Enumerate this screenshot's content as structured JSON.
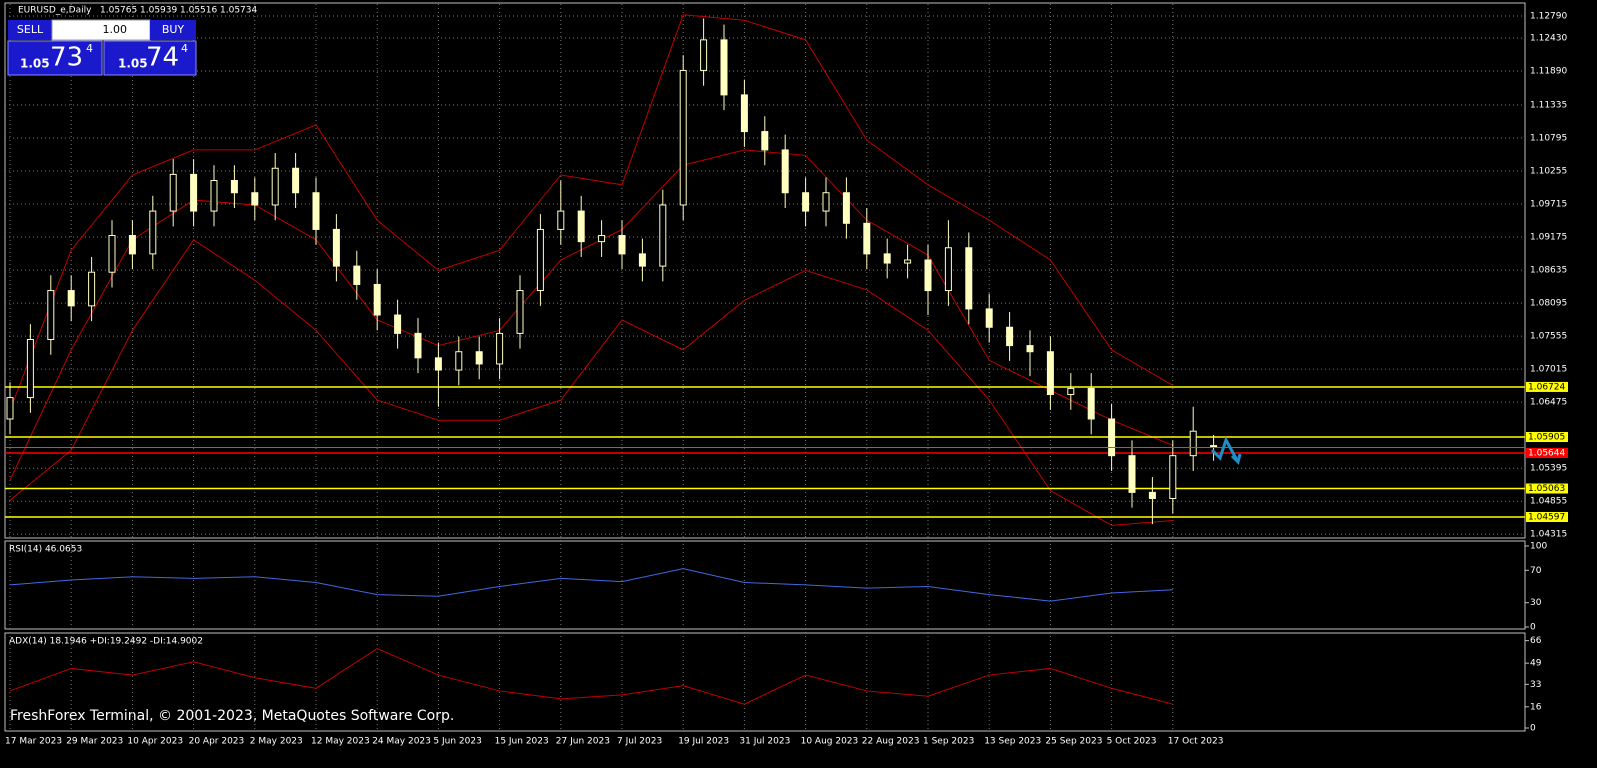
{
  "header": {
    "symbol": "EURUSD_e,Daily"
  },
  "trade_panel": {
    "sell": "SELL",
    "buy": "BUY",
    "lot": "1.00",
    "sell_price": {
      "prefix": "1.05",
      "main": "73",
      "sup": "4"
    },
    "buy_price": {
      "prefix": "1.05",
      "main": "74",
      "sup": "4"
    }
  },
  "footer": "FreshForex Terminal, © 2001-2023, MetaQuotes Software Corp.",
  "chart_data": [
    {
      "type": "candlestick",
      "categories": [
        "17 Mar 2023",
        null,
        null,
        "29 Mar 2023",
        null,
        null,
        "10 Apr 2023",
        null,
        null,
        "20 Apr 2023",
        null,
        null,
        "2 May 2023",
        null,
        null,
        "12 May 2023",
        null,
        null,
        "24 May 2023",
        null,
        null,
        "5 Jun 2023",
        null,
        null,
        "15 Jun 2023",
        null,
        null,
        "27 Jun 2023",
        null,
        null,
        "7 Jul 2023",
        null,
        null,
        "19 Jul 2023",
        null,
        null,
        "31 Jul 2023",
        null,
        null,
        "10 Aug 2023",
        null,
        null,
        "22 Aug 2023",
        null,
        null,
        "1 Sep 2023",
        null,
        null,
        "13 Sep 2023",
        null,
        null,
        "25 Sep 2023",
        null,
        null,
        "5 Oct 2023",
        null,
        null,
        "17 Oct 2023",
        null,
        null
      ],
      "candles": [
        [
          1.062,
          1.068,
          1.0595,
          1.0655
        ],
        [
          1.0655,
          1.0775,
          1.063,
          1.075
        ],
        [
          1.075,
          1.0855,
          1.0725,
          1.083
        ],
        [
          1.083,
          1.0855,
          1.078,
          1.0805
        ],
        [
          1.0805,
          1.0885,
          1.078,
          1.086
        ],
        [
          1.086,
          1.0945,
          1.0835,
          1.092
        ],
        [
          1.092,
          1.0945,
          1.0865,
          1.089
        ],
        [
          1.089,
          1.0985,
          1.0865,
          1.096
        ],
        [
          1.096,
          1.1045,
          1.0935,
          1.102
        ],
        [
          1.102,
          1.1045,
          1.0935,
          1.096
        ],
        [
          1.096,
          1.1035,
          1.0935,
          1.101
        ],
        [
          1.101,
          1.1035,
          1.0965,
          1.099
        ],
        [
          1.099,
          1.1015,
          1.0945,
          1.097
        ],
        [
          1.097,
          1.1055,
          1.0945,
          1.103
        ],
        [
          1.103,
          1.1055,
          1.0965,
          1.099
        ],
        [
          1.099,
          1.1015,
          1.0905,
          1.093
        ],
        [
          1.093,
          1.0955,
          1.0845,
          1.087
        ],
        [
          1.087,
          1.0895,
          1.0815,
          1.084
        ],
        [
          1.084,
          1.0865,
          1.0765,
          1.079
        ],
        [
          1.079,
          1.0815,
          1.0735,
          1.076
        ],
        [
          1.076,
          1.0785,
          1.0695,
          1.072
        ],
        [
          1.072,
          1.0745,
          1.064,
          1.07
        ],
        [
          1.07,
          1.0755,
          1.0675,
          1.073
        ],
        [
          1.073,
          1.0755,
          1.0685,
          1.071
        ],
        [
          1.071,
          1.0785,
          1.0685,
          1.076
        ],
        [
          1.076,
          1.0855,
          1.0735,
          1.083
        ],
        [
          1.083,
          1.0955,
          1.0805,
          1.093
        ],
        [
          1.093,
          1.101,
          1.0905,
          1.096
        ],
        [
          1.096,
          1.0985,
          1.0885,
          1.091
        ],
        [
          1.091,
          1.0945,
          1.0885,
          1.092
        ],
        [
          1.092,
          1.0945,
          1.0865,
          1.089
        ],
        [
          1.089,
          1.0915,
          1.0845,
          1.087
        ],
        [
          1.087,
          1.0995,
          1.0845,
          1.097
        ],
        [
          1.097,
          1.1215,
          1.0945,
          1.119
        ],
        [
          1.119,
          1.1275,
          1.1165,
          1.124
        ],
        [
          1.124,
          1.1265,
          1.1125,
          1.115
        ],
        [
          1.115,
          1.1175,
          1.1065,
          1.109
        ],
        [
          1.109,
          1.1115,
          1.1035,
          1.106
        ],
        [
          1.106,
          1.1085,
          1.0965,
          1.099
        ],
        [
          1.099,
          1.1015,
          1.0935,
          1.096
        ],
        [
          1.096,
          1.1015,
          1.0935,
          1.099
        ],
        [
          1.099,
          1.1015,
          1.0915,
          1.094
        ],
        [
          1.094,
          1.0965,
          1.0865,
          1.089
        ],
        [
          1.089,
          1.0915,
          1.085,
          1.0875
        ],
        [
          1.0875,
          1.0905,
          1.085,
          1.088
        ],
        [
          1.088,
          1.0905,
          1.079,
          1.083
        ],
        [
          1.083,
          1.0945,
          1.0805,
          1.09
        ],
        [
          1.09,
          1.0925,
          1.0775,
          1.08
        ],
        [
          1.08,
          1.0825,
          1.0745,
          1.077
        ],
        [
          1.077,
          1.0795,
          1.0715,
          1.074
        ],
        [
          1.074,
          1.0765,
          1.069,
          1.073
        ],
        [
          1.073,
          1.0755,
          1.0635,
          1.066
        ],
        [
          1.066,
          1.0695,
          1.0635,
          1.067
        ],
        [
          1.067,
          1.0695,
          1.0595,
          1.062
        ],
        [
          1.062,
          1.0645,
          1.0535,
          1.056
        ],
        [
          1.056,
          1.0585,
          1.0475,
          1.05
        ],
        [
          1.05,
          1.0525,
          1.0448,
          1.049
        ],
        [
          1.049,
          1.0585,
          1.0465,
          1.056
        ],
        [
          1.056,
          1.064,
          1.0535,
          1.06
        ],
        [
          1.05765,
          1.05939,
          1.05516,
          1.05734
        ]
      ],
      "candle_color": "#ffffc0",
      "bands": {
        "color": "#c00000",
        "upper": [
          1.0634,
          1.0896,
          1.1019,
          1.106,
          1.106,
          1.1101,
          1.0945,
          1.0863,
          1.0896,
          1.1019,
          1.1003,
          1.1281,
          1.1272,
          1.124,
          1.1076,
          1.1003,
          1.0945,
          1.088,
          1.0733,
          1.0675
        ],
        "middle": [
          1.052,
          1.0733,
          1.0913,
          1.0978,
          1.097,
          1.0913,
          1.0782,
          1.074,
          1.0765,
          1.088,
          1.093,
          1.1035,
          1.106,
          1.1051,
          1.0945,
          1.0888,
          1.0716,
          1.0667,
          1.0618,
          1.0577
        ],
        "lower": [
          1.0487,
          1.0569,
          1.0765,
          1.0913,
          1.0847,
          1.0765,
          1.0651,
          1.0618,
          1.0618,
          1.0651,
          1.0782,
          1.0733,
          1.0814,
          1.0863,
          1.0831,
          1.0765,
          1.0651,
          1.0503,
          1.0446,
          1.0454
        ]
      },
      "levels": [
        {
          "value": 1.06724,
          "color": "#ffff00"
        },
        {
          "value": 1.05905,
          "color": "#ffff00"
        },
        {
          "value": 1.05644,
          "color": "#ff0000"
        },
        {
          "value": 1.05063,
          "color": "#ffff00"
        },
        {
          "value": 1.04597,
          "color": "#ffff00"
        }
      ],
      "ylim": [
        1.0427,
        1.1297
      ],
      "yticks": [
        {
          "value": 1.1279,
          "label": "1.12790"
        },
        {
          "value": 1.1243,
          "label": "1.12430"
        },
        {
          "value": 1.1189,
          "label": "1.11890"
        },
        1.11335,
        {
          "value": 1.10795,
          "label": "1.10795"
        },
        1.10255,
        1.09715,
        1.09175,
        1.08635,
        1.08095,
        1.07555,
        1.07015,
        1.06475,
        1.05395,
        1.04855,
        1.04315
      ],
      "grid": true
    },
    {
      "type": "line",
      "title": "RSI(14) 46.0653",
      "color": "#4169e1",
      "values": [
        52,
        58,
        62,
        60,
        62,
        55,
        40,
        38,
        50,
        60,
        56,
        72,
        55,
        52,
        48,
        50,
        40,
        32,
        42,
        46
      ],
      "ylim": [
        0,
        100
      ],
      "yticks": [
        0,
        30,
        70,
        100
      ]
    },
    {
      "type": "line",
      "title": "ADX(14) 18.1946 +DI:19.2492 -DI:14.9002",
      "color": "#c00000",
      "values": [
        28,
        45,
        40,
        50,
        38,
        30,
        60,
        40,
        28,
        22,
        25,
        32,
        18,
        40,
        28,
        24,
        40,
        45,
        30,
        18
      ],
      "ylim": [
        0,
        68
      ],
      "yticks": [
        0,
        16,
        33,
        49,
        66
      ]
    }
  ]
}
